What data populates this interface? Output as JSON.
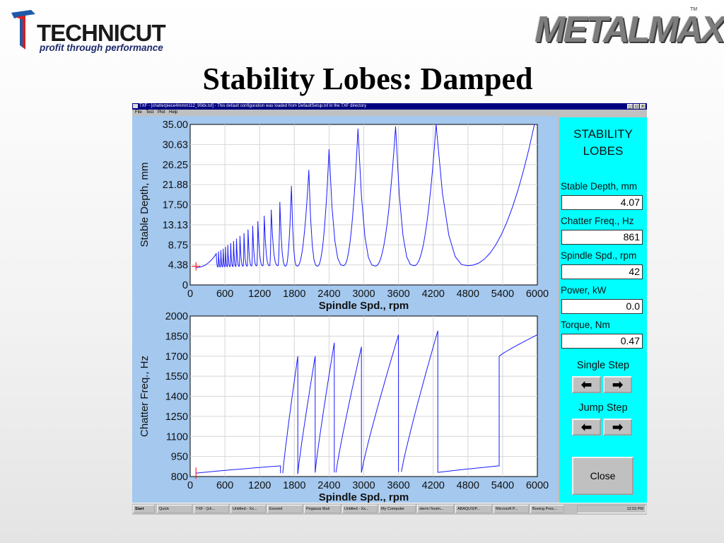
{
  "logos": {
    "technicut_name": "TECHNICUT",
    "technicut_tagline": "profit through performance",
    "metalmax_name": "METALMAX",
    "metalmax_tm": "TM"
  },
  "slide_title": "Stability Lobes: Damped",
  "window": {
    "title": "TXF - [chatterpiece4mmm112_90dx.txf] - This default configuration was loaded from DefaultSetup.txf in the TXF directory",
    "menu": [
      "File",
      "Test",
      "Plot",
      "Help"
    ]
  },
  "colors": {
    "plot_background": "#a4c8ee",
    "sidebar": "#00ffff",
    "curve": "#1a1aff",
    "marker": "#ff0000",
    "titlebar": "#000080"
  },
  "sidebar": {
    "title_line1": "STABILITY",
    "title_line2": "LOBES",
    "fields": [
      {
        "label": "Stable Depth, mm",
        "value": "4.07"
      },
      {
        "label": "Chatter Freq., Hz",
        "value": "861"
      },
      {
        "label": "Spindle Spd., rpm",
        "value": "42"
      },
      {
        "label": "Power, kW",
        "value": "0.0"
      },
      {
        "label": "Torque, Nm",
        "value": "0.47"
      }
    ],
    "single_step": "Single Step",
    "jump_step": "Jump Step",
    "left_arrow": "⬅",
    "right_arrow": "➡",
    "close": "Close"
  },
  "taskbar": {
    "items": [
      "Start",
      "Quick",
      "TXF - [ch...",
      "Untitled - Xs...",
      "Exceed",
      "Pegasus Mail",
      "Untitled - Xs...",
      "My Computer",
      "xterm:'hostn...",
      "ABAQUS/P...",
      "Microsoft P...",
      "Boeing Pres..."
    ],
    "clock": "12:03 PM"
  },
  "chart_data": [
    {
      "type": "line",
      "title": "",
      "xlabel": "Spindle Spd., rpm",
      "ylabel": "Stable Depth, mm",
      "xlim": [
        0,
        6000
      ],
      "ylim": [
        0,
        35.0
      ],
      "xticks": [
        "0",
        "600",
        "1200",
        "1800",
        "2400",
        "3000",
        "3600",
        "4200",
        "4800",
        "5400",
        "6000"
      ],
      "yticks": [
        "0",
        "4.38",
        "8.75",
        "13.13",
        "17.50",
        "21.88",
        "26.25",
        "30.63",
        "35.00"
      ],
      "grid": true,
      "lobe_peaks": [
        [
          450,
          6.8
        ],
        [
          490,
          7.2
        ],
        [
          530,
          7.5
        ],
        [
          570,
          7.8
        ],
        [
          610,
          8.2
        ],
        [
          650,
          8.6
        ],
        [
          700,
          9.0
        ],
        [
          750,
          9.5
        ],
        [
          800,
          10.0
        ],
        [
          860,
          10.6
        ],
        [
          930,
          11.2
        ],
        [
          1000,
          12.0
        ],
        [
          1080,
          12.8
        ],
        [
          1170,
          13.8
        ],
        [
          1280,
          15.0
        ],
        [
          1400,
          16.3
        ],
        [
          1550,
          18.0
        ],
        [
          1750,
          21.5
        ],
        [
          2050,
          25.0
        ],
        [
          2400,
          29.5
        ],
        [
          2900,
          34.0
        ],
        [
          3550,
          34.5
        ],
        [
          4250,
          35.0
        ],
        [
          5950,
          35.0
        ]
      ],
      "lobe_minima": [
        [
          100,
          3.8
        ],
        [
          1650,
          4.1
        ],
        [
          1850,
          4.1
        ],
        [
          2200,
          4.1
        ],
        [
          2650,
          4.2
        ],
        [
          3200,
          4.1
        ],
        [
          3870,
          4.2
        ],
        [
          4800,
          4.2
        ]
      ],
      "annotations": [
        {
          "x": 5350,
          "y": 16.0,
          "text": ""
        }
      ]
    },
    {
      "type": "line",
      "title": "",
      "xlabel": "Spindle Spd., rpm",
      "ylabel": "Chatter Freq., Hz",
      "xlim": [
        0,
        6000
      ],
      "ylim": [
        800,
        2000
      ],
      "xticks": [
        "0",
        "600",
        "1200",
        "1800",
        "2400",
        "3000",
        "3600",
        "4200",
        "4800",
        "5400",
        "6000"
      ],
      "yticks": [
        "800",
        "950",
        "1100",
        "1250",
        "1400",
        "1550",
        "1700",
        "1850",
        "2000"
      ],
      "grid": true,
      "segments": [
        {
          "x": [
            100,
            1560
          ],
          "y": [
            825,
            880
          ]
        },
        {
          "x": [
            1600,
            1860
          ],
          "y": [
            825,
            1700
          ]
        },
        {
          "x": [
            1860,
            2160
          ],
          "y": [
            820,
            1700
          ]
        },
        {
          "x": [
            2160,
            2490
          ],
          "y": [
            830,
            1800
          ]
        },
        {
          "x": [
            2520,
            2960
          ],
          "y": [
            830,
            1770
          ]
        },
        {
          "x": [
            2960,
            3600
          ],
          "y": [
            830,
            1860
          ]
        },
        {
          "x": [
            3650,
            4280
          ],
          "y": [
            835,
            1890
          ]
        },
        {
          "x": [
            4280,
            5340
          ],
          "y": [
            830,
            880
          ]
        },
        {
          "x": [
            5340,
            6000
          ],
          "y": [
            1700,
            1860
          ]
        }
      ]
    }
  ]
}
